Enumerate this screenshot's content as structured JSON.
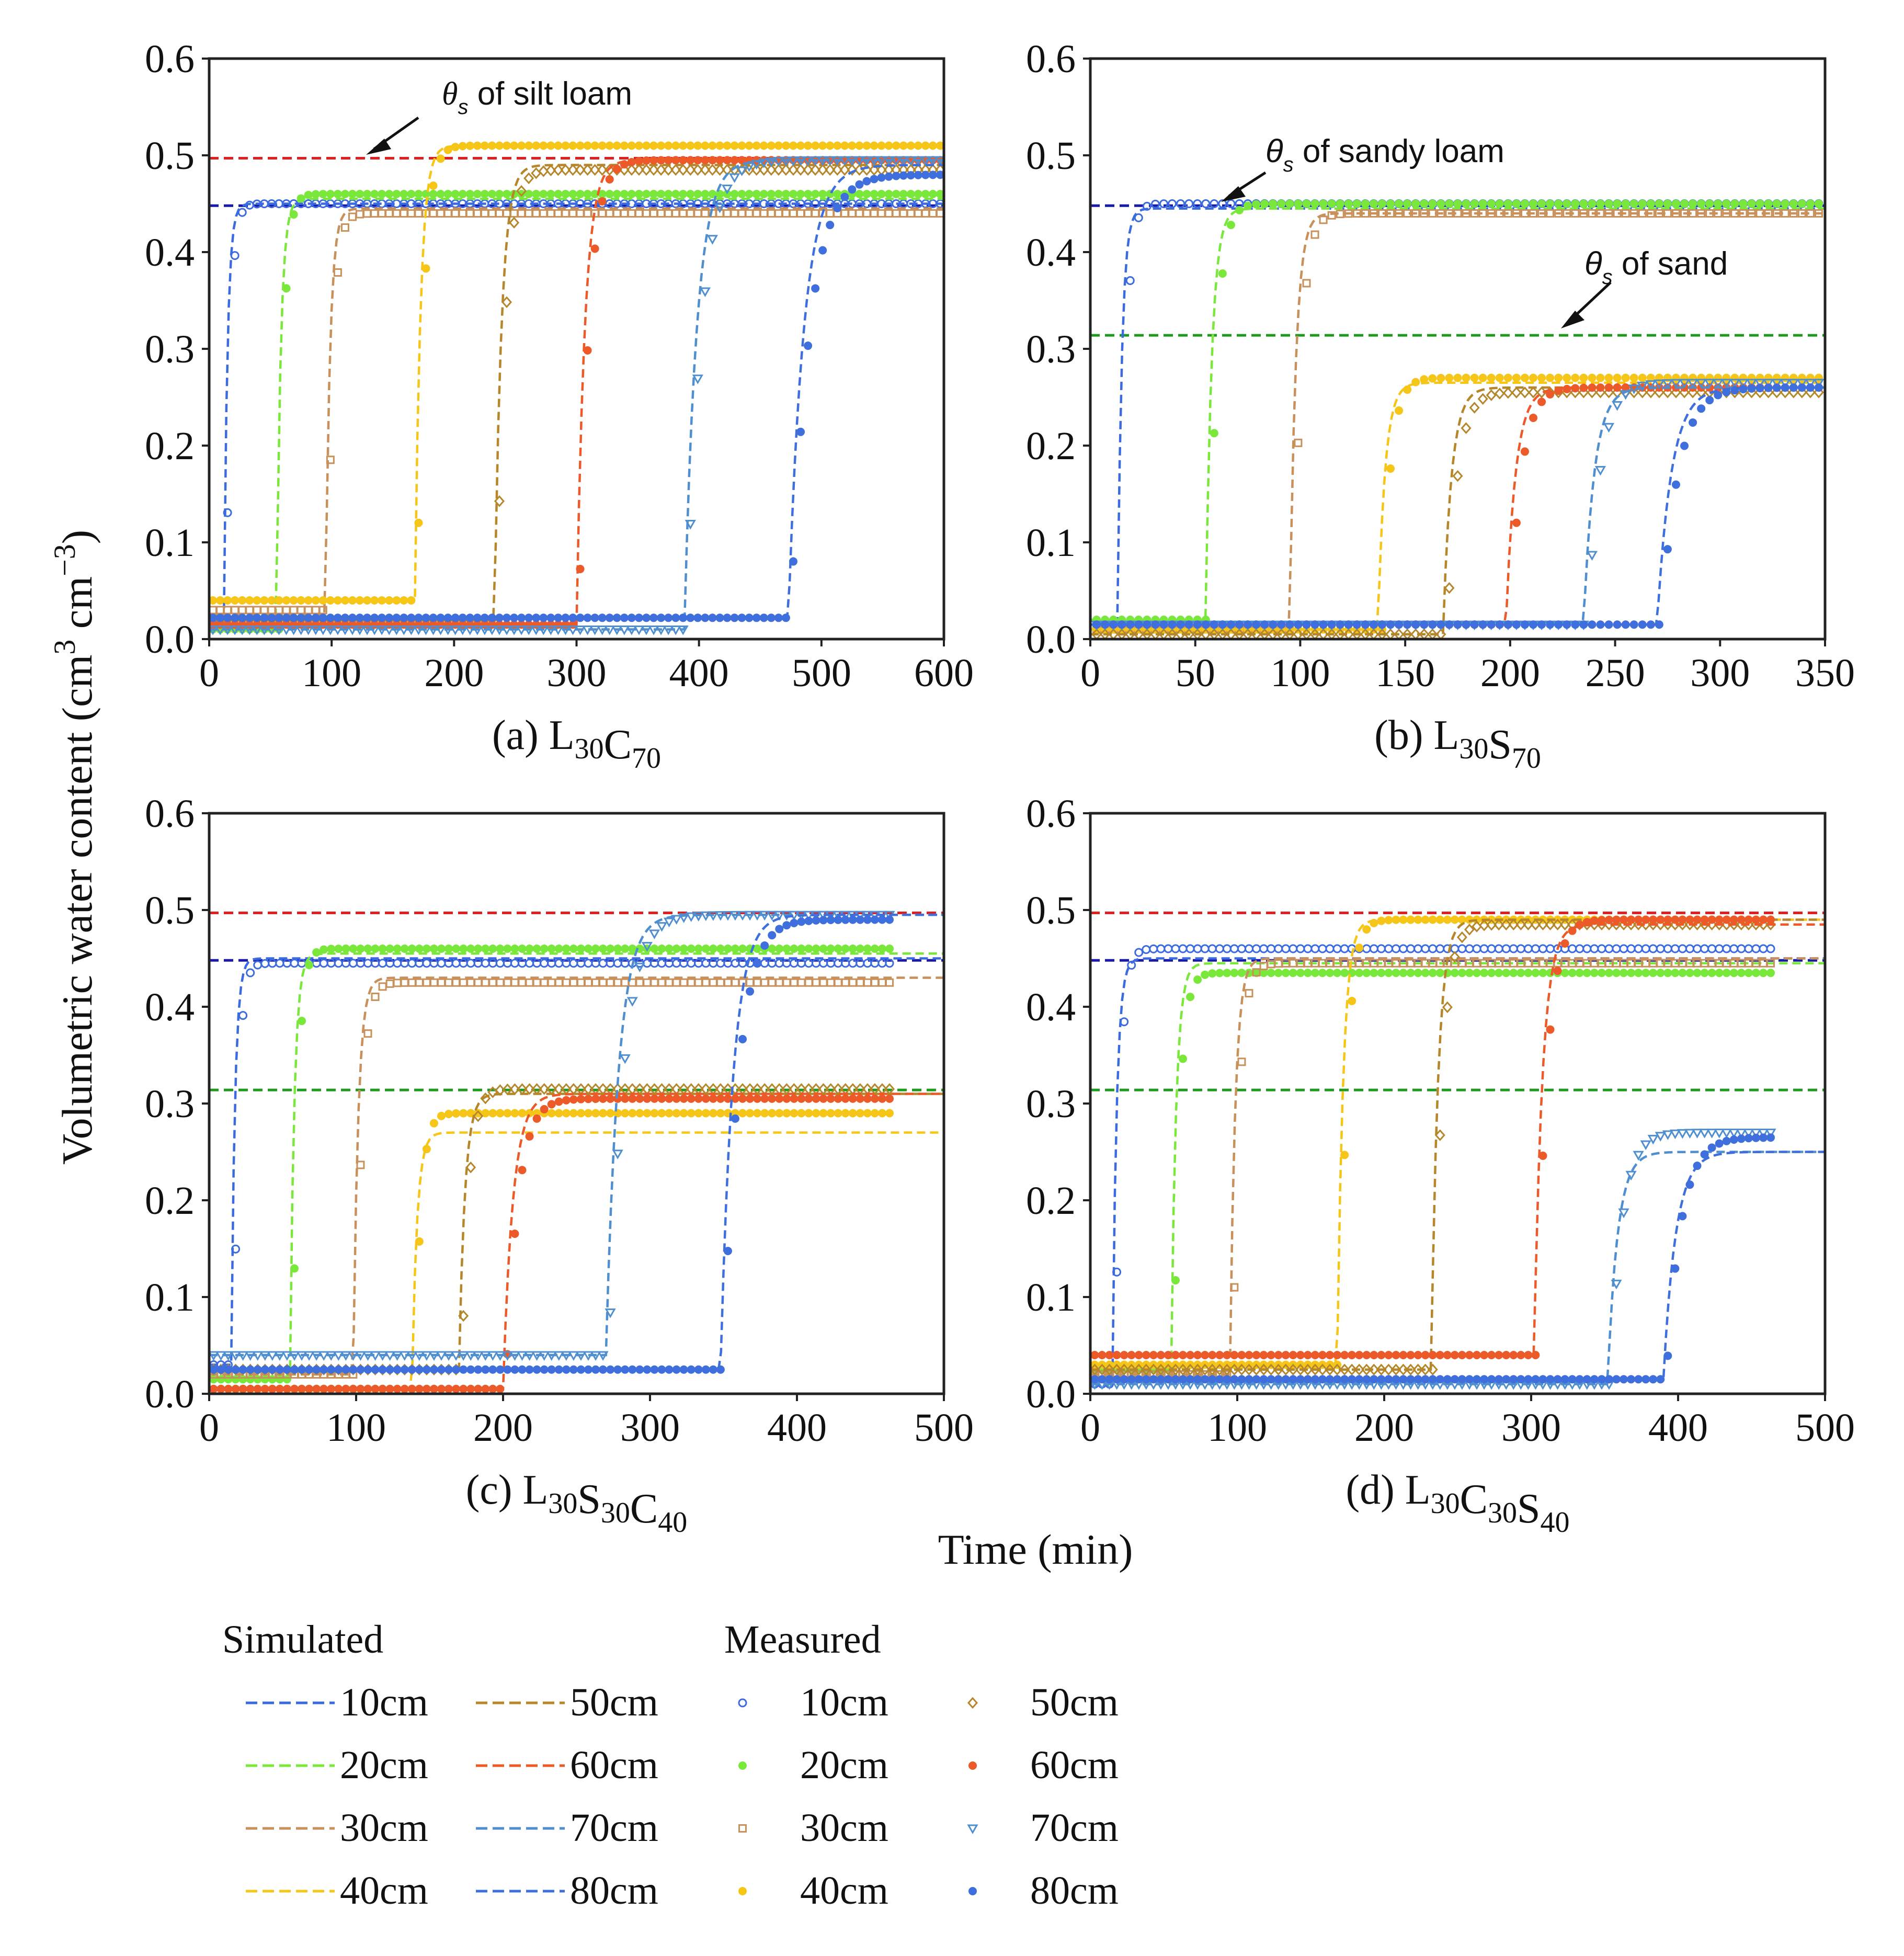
{
  "figure": {
    "ylabel": "Volumetric water content (cm",
    "ylabel_unit": "3",
    "ylabel_cm": " cm",
    "ylabel_exp": "−3",
    "ylabel_close": ")",
    "xlabel": "Time (min)"
  },
  "legend": {
    "simulated_title": "Simulated",
    "measured_title": "Measured",
    "depths": [
      "10cm",
      "20cm",
      "30cm",
      "40cm",
      "50cm",
      "60cm",
      "70cm",
      "80cm"
    ],
    "colors": [
      "#3c6be0",
      "#79e83a",
      "#c8905a",
      "#f5c518",
      "#b5862a",
      "#ec5a2a",
      "#4f8fd0",
      "#3f6fdd"
    ],
    "markers": [
      "open-circle",
      "dot",
      "open-square",
      "dot",
      "open-diamond",
      "dot",
      "open-triangle-down",
      "dot"
    ]
  },
  "annotations": {
    "a_silt": {
      "theta": "θ",
      "sub": "s",
      "rest": " of silt loam"
    },
    "b_sandy": {
      "theta": "θ",
      "sub": "s",
      "rest": " of sandy loam"
    },
    "b_sand": {
      "theta": "θ",
      "sub": "s",
      "rest": " of sand"
    }
  },
  "reference_colors": {
    "silt_loam": "#e02020",
    "sandy_loam": "#1a1aa8",
    "sand": "#1e9a1e"
  },
  "chart_data": [
    {
      "type": "line",
      "id": "a",
      "title_prefix": "(a) L",
      "title_parts": [
        [
          "L",
          "30"
        ],
        [
          "C",
          "70"
        ]
      ],
      "xlim": [
        0,
        600
      ],
      "ylim": [
        0,
        0.6
      ],
      "xticks": [
        "0",
        "100",
        "200",
        "300",
        "400",
        "500",
        "600"
      ],
      "yticks": [
        "0.0",
        "0.1",
        "0.2",
        "0.3",
        "0.4",
        "0.5",
        "0.6"
      ],
      "ref_lines": [
        {
          "y": 0.497,
          "color": "#e02020"
        },
        {
          "y": 0.448,
          "color": "#1a1aa8"
        }
      ],
      "series": [
        {
          "name": "10cm",
          "t0": 12,
          "k": 0.35,
          "base": 0.02,
          "final": 0.45,
          "m_base": 0.02,
          "m_final": 0.45,
          "m_step": 6
        },
        {
          "name": "20cm",
          "t0": 55,
          "k": 0.3,
          "base": 0.01,
          "final": 0.455,
          "m_base": 0.01,
          "m_final": 0.46,
          "m_step": 6
        },
        {
          "name": "30cm",
          "t0": 95,
          "k": 0.28,
          "base": 0.025,
          "final": 0.445,
          "m_base": 0.03,
          "m_final": 0.44,
          "m_step": 6
        },
        {
          "name": "40cm",
          "t0": 168,
          "k": 0.22,
          "base": 0.04,
          "final": 0.51,
          "m_base": 0.04,
          "m_final": 0.51,
          "m_step": 6
        },
        {
          "name": "50cm",
          "t0": 233,
          "k": 0.18,
          "base": 0.02,
          "final": 0.49,
          "m_base": 0.02,
          "m_final": 0.485,
          "m_step": 6
        },
        {
          "name": "60cm",
          "t0": 300,
          "k": 0.15,
          "base": 0.015,
          "final": 0.495,
          "m_base": 0.015,
          "m_final": 0.495,
          "m_step": 6
        },
        {
          "name": "70cm",
          "t0": 388,
          "k": 0.1,
          "base": 0.01,
          "final": 0.495,
          "m_base": 0.01,
          "m_final": 0.495,
          "m_step": 6
        },
        {
          "name": "80cm",
          "t0": 473,
          "k": 0.08,
          "base": 0.022,
          "final": 0.49,
          "m_base": 0.022,
          "m_final": 0.48,
          "m_step": 6
        }
      ]
    },
    {
      "type": "line",
      "id": "b",
      "title_prefix": "(b) L",
      "title_parts": [
        [
          "L",
          "30"
        ],
        [
          "S",
          "70"
        ]
      ],
      "xlim": [
        0,
        350
      ],
      "ylim": [
        0,
        0.6
      ],
      "xticks": [
        "0",
        "50",
        "100",
        "150",
        "200",
        "250",
        "300",
        "350"
      ],
      "yticks": [
        "0.0",
        "0.1",
        "0.2",
        "0.3",
        "0.4",
        "0.5",
        "0.6"
      ],
      "ref_lines": [
        {
          "y": 0.448,
          "color": "#1a1aa8"
        },
        {
          "y": 0.314,
          "color": "#1e9a1e"
        }
      ],
      "series": [
        {
          "name": "10cm",
          "t0": 13,
          "k": 0.5,
          "base": 0.015,
          "final": 0.445,
          "m_base": 0.015,
          "m_final": 0.45,
          "m_step": 4
        },
        {
          "name": "20cm",
          "t0": 55,
          "k": 0.35,
          "base": 0.02,
          "final": 0.445,
          "m_base": 0.02,
          "m_final": 0.45,
          "m_step": 4
        },
        {
          "name": "30cm",
          "t0": 95,
          "k": 0.35,
          "base": 0.01,
          "final": 0.44,
          "m_base": 0.01,
          "m_final": 0.44,
          "m_step": 4
        },
        {
          "name": "40cm",
          "t0": 137,
          "k": 0.3,
          "base": 0.01,
          "final": 0.265,
          "m_base": 0.01,
          "m_final": 0.27,
          "m_step": 4
        },
        {
          "name": "50cm",
          "t0": 168,
          "k": 0.25,
          "base": 0.005,
          "final": 0.26,
          "m_base": 0.005,
          "m_final": 0.255,
          "m_step": 4
        },
        {
          "name": "60cm",
          "t0": 198,
          "k": 0.22,
          "base": 0.015,
          "final": 0.26,
          "m_base": 0.015,
          "m_final": 0.26,
          "m_step": 4
        },
        {
          "name": "70cm",
          "t0": 235,
          "k": 0.2,
          "base": 0.015,
          "final": 0.26,
          "m_base": 0.015,
          "m_final": 0.265,
          "m_step": 4
        },
        {
          "name": "80cm",
          "t0": 270,
          "k": 0.15,
          "base": 0.015,
          "final": 0.26,
          "m_base": 0.015,
          "m_final": 0.26,
          "m_step": 4
        }
      ]
    },
    {
      "type": "line",
      "id": "c",
      "title_prefix": "(c) L",
      "title_parts": [
        [
          "L",
          "30"
        ],
        [
          "S",
          "30"
        ],
        [
          "C",
          "40"
        ]
      ],
      "xlim": [
        0,
        500
      ],
      "ylim": [
        0,
        0.6
      ],
      "xticks": [
        "0",
        "100",
        "200",
        "300",
        "400",
        "500"
      ],
      "yticks": [
        "0.0",
        "0.1",
        "0.2",
        "0.3",
        "0.4",
        "0.5",
        "0.6"
      ],
      "ref_lines": [
        {
          "y": 0.497,
          "color": "#e02020"
        },
        {
          "y": 0.448,
          "color": "#1a1aa8"
        },
        {
          "y": 0.314,
          "color": "#1e9a1e"
        }
      ],
      "series": [
        {
          "name": "10cm",
          "t0": 15,
          "k": 0.4,
          "base": 0.03,
          "final": 0.45,
          "m_base": 0.03,
          "m_final": 0.445,
          "m_step": 5
        },
        {
          "name": "20cm",
          "t0": 55,
          "k": 0.35,
          "base": 0.015,
          "final": 0.455,
          "m_base": 0.015,
          "m_final": 0.46,
          "m_step": 5
        },
        {
          "name": "30cm",
          "t0": 98,
          "k": 0.3,
          "base": 0.02,
          "final": 0.43,
          "m_base": 0.02,
          "m_final": 0.425,
          "m_step": 5
        },
        {
          "name": "40cm",
          "t0": 138,
          "k": 0.3,
          "base": 0.005,
          "final": 0.27,
          "m_base": 0.005,
          "m_final": 0.29,
          "m_step": 5
        },
        {
          "name": "50cm",
          "t0": 170,
          "k": 0.25,
          "base": 0.025,
          "final": 0.31,
          "m_base": 0.025,
          "m_final": 0.315,
          "m_step": 5
        },
        {
          "name": "60cm",
          "t0": 200,
          "k": 0.15,
          "base": 0.005,
          "final": 0.31,
          "m_base": 0.005,
          "m_final": 0.305,
          "m_step": 5
        },
        {
          "name": "70cm",
          "t0": 270,
          "k": 0.12,
          "base": 0.04,
          "final": 0.495,
          "m_base": 0.04,
          "m_final": 0.495,
          "m_step": 5
        },
        {
          "name": "80cm",
          "t0": 348,
          "k": 0.12,
          "base": 0.025,
          "final": 0.495,
          "m_base": 0.025,
          "m_final": 0.49,
          "m_step": 5
        }
      ]
    },
    {
      "type": "line",
      "id": "d",
      "title_prefix": "(d) L",
      "title_parts": [
        [
          "L",
          "30"
        ],
        [
          "C",
          "30"
        ],
        [
          "S",
          "40"
        ]
      ],
      "xlim": [
        0,
        500
      ],
      "ylim": [
        0,
        0.6
      ],
      "xticks": [
        "0",
        "100",
        "200",
        "300",
        "400",
        "500"
      ],
      "yticks": [
        "0.0",
        "0.1",
        "0.2",
        "0.3",
        "0.4",
        "0.5",
        "0.6"
      ],
      "ref_lines": [
        {
          "y": 0.497,
          "color": "#e02020"
        },
        {
          "y": 0.448,
          "color": "#1a1aa8"
        },
        {
          "y": 0.314,
          "color": "#1e9a1e"
        }
      ],
      "series": [
        {
          "name": "10cm",
          "t0": 15,
          "k": 0.35,
          "base": 0.01,
          "final": 0.45,
          "m_base": 0.01,
          "m_final": 0.46,
          "m_step": 5
        },
        {
          "name": "20cm",
          "t0": 55,
          "k": 0.3,
          "base": 0.025,
          "final": 0.445,
          "m_base": 0.025,
          "m_final": 0.435,
          "m_step": 5
        },
        {
          "name": "30cm",
          "t0": 95,
          "k": 0.28,
          "base": 0.02,
          "final": 0.45,
          "m_base": 0.02,
          "m_final": 0.445,
          "m_step": 5
        },
        {
          "name": "40cm",
          "t0": 168,
          "k": 0.25,
          "base": 0.03,
          "final": 0.49,
          "m_base": 0.03,
          "m_final": 0.49,
          "m_step": 5
        },
        {
          "name": "50cm",
          "t0": 232,
          "k": 0.22,
          "base": 0.025,
          "final": 0.49,
          "m_base": 0.025,
          "m_final": 0.485,
          "m_step": 5
        },
        {
          "name": "60cm",
          "t0": 302,
          "k": 0.18,
          "base": 0.04,
          "final": 0.485,
          "m_base": 0.04,
          "m_final": 0.49,
          "m_step": 5
        },
        {
          "name": "70cm",
          "t0": 352,
          "k": 0.15,
          "base": 0.01,
          "final": 0.25,
          "m_base": 0.01,
          "m_final": 0.27,
          "m_step": 5
        },
        {
          "name": "80cm",
          "t0": 390,
          "k": 0.12,
          "base": 0.015,
          "final": 0.25,
          "m_base": 0.015,
          "m_final": 0.265,
          "m_step": 5
        }
      ]
    }
  ]
}
